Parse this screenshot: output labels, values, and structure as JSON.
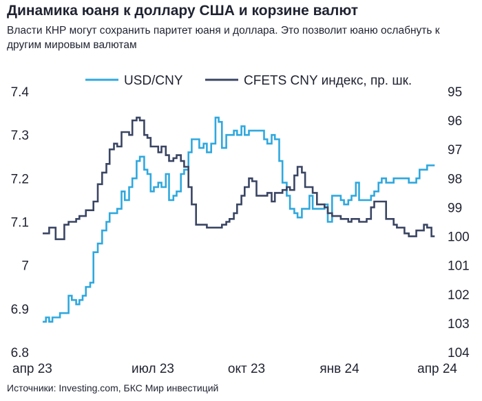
{
  "header": {
    "title": "Динамика юаня к доллару США и корзине валют",
    "subtitle": "Власти КНР могут сохранить паритет юаня и доллара. Это позволит юаню ослабнуть к другим мировым валютам"
  },
  "footer": {
    "source": "Источники: Investing.com, БКС Мир инвестиций"
  },
  "colors": {
    "usd_cny": "#2fa8de",
    "cfets": "#3a4563",
    "text": "#1f2230"
  },
  "chart_data": {
    "type": "line",
    "legend_position": "top-center",
    "grid": false,
    "xlabel": "",
    "x_ticks": [
      "апр 23",
      "июл 23",
      "окт 23",
      "янв 24",
      "апр 24"
    ],
    "x_range": [
      "2023-04-01",
      "2024-04-01"
    ],
    "y_left": {
      "label": "",
      "range": [
        6.8,
        7.4
      ],
      "ticks": [
        "6.8",
        "6.9",
        "7",
        "7.1",
        "7.2",
        "7.3",
        "7.4"
      ]
    },
    "y_right": {
      "label": "",
      "range": [
        95,
        104
      ],
      "inverted": true,
      "ticks": [
        "95",
        "96",
        "97",
        "98",
        "99",
        "100",
        "101",
        "102",
        "103",
        "104"
      ]
    },
    "series": [
      {
        "name": "USD/CNY",
        "axis": "left",
        "x": [
          "2023-04-01",
          "2023-04-04",
          "2023-04-07",
          "2023-04-10",
          "2023-04-13",
          "2023-04-17",
          "2023-04-21",
          "2023-04-25",
          "2023-04-28",
          "2023-05-02",
          "2023-05-05",
          "2023-05-08",
          "2023-05-11",
          "2023-05-15",
          "2023-05-18",
          "2023-05-22",
          "2023-05-26",
          "2023-05-30",
          "2023-06-02",
          "2023-06-06",
          "2023-06-09",
          "2023-06-13",
          "2023-06-16",
          "2023-06-20",
          "2023-06-23",
          "2023-06-27",
          "2023-06-30",
          "2023-07-04",
          "2023-07-07",
          "2023-07-10",
          "2023-07-13",
          "2023-07-17",
          "2023-07-20",
          "2023-07-24",
          "2023-07-27",
          "2023-07-31",
          "2023-08-03",
          "2023-08-07",
          "2023-08-10",
          "2023-08-14",
          "2023-08-17",
          "2023-08-21",
          "2023-08-24",
          "2023-08-28",
          "2023-08-31",
          "2023-09-04",
          "2023-09-08",
          "2023-09-11",
          "2023-09-14",
          "2023-09-18",
          "2023-09-21",
          "2023-09-25",
          "2023-09-28",
          "2023-10-02",
          "2023-10-05",
          "2023-10-09",
          "2023-10-12",
          "2023-10-16",
          "2023-10-19",
          "2023-10-23",
          "2023-10-26",
          "2023-10-30",
          "2023-11-02",
          "2023-11-06",
          "2023-11-09",
          "2023-11-13",
          "2023-11-16",
          "2023-11-20",
          "2023-11-23",
          "2023-11-27",
          "2023-11-30",
          "2023-12-04",
          "2023-12-07",
          "2023-12-11",
          "2023-12-14",
          "2023-12-18",
          "2023-12-21",
          "2023-12-25",
          "2023-12-28",
          "2024-01-02",
          "2024-01-05",
          "2024-01-09",
          "2024-01-12",
          "2024-01-16",
          "2024-01-19",
          "2024-01-23",
          "2024-01-26",
          "2024-01-30",
          "2024-02-02",
          "2024-02-06",
          "2024-02-09",
          "2024-02-13",
          "2024-02-16",
          "2024-02-20",
          "2024-02-23",
          "2024-02-27",
          "2024-03-01",
          "2024-03-05",
          "2024-03-08",
          "2024-03-12",
          "2024-03-15",
          "2024-03-19",
          "2024-03-22",
          "2024-03-26",
          "2024-03-29"
        ],
        "values": [
          6.87,
          6.88,
          6.87,
          6.88,
          6.88,
          6.89,
          6.89,
          6.93,
          6.92,
          6.91,
          6.92,
          6.93,
          6.95,
          6.96,
          7.03,
          7.05,
          7.08,
          7.1,
          7.12,
          7.12,
          7.13,
          7.17,
          7.15,
          7.18,
          7.2,
          7.24,
          7.25,
          7.22,
          7.21,
          7.17,
          7.18,
          7.19,
          7.18,
          7.21,
          7.15,
          7.16,
          7.17,
          7.21,
          7.22,
          7.26,
          7.29,
          7.29,
          7.27,
          7.28,
          7.26,
          7.28,
          7.34,
          7.33,
          7.27,
          7.3,
          7.3,
          7.31,
          7.3,
          7.32,
          7.3,
          7.31,
          7.31,
          7.31,
          7.31,
          7.29,
          7.28,
          7.3,
          7.29,
          7.24,
          7.19,
          7.16,
          7.13,
          7.12,
          7.11,
          7.13,
          7.13,
          7.16,
          7.13,
          7.13,
          7.13,
          7.14,
          7.1,
          7.16,
          7.16,
          7.15,
          7.14,
          7.15,
          7.16,
          7.19,
          7.15,
          7.15,
          7.15,
          7.16,
          7.17,
          7.19,
          7.2,
          7.19,
          7.19,
          7.2,
          7.2,
          7.2,
          7.2,
          7.19,
          7.19,
          7.2,
          7.22,
          7.22,
          7.23,
          7.23,
          7.23
        ]
      },
      {
        "name": "CFETS CNY индекс, пр. шк.",
        "axis": "right",
        "x": [
          "2023-04-01",
          "2023-04-04",
          "2023-04-07",
          "2023-04-10",
          "2023-04-13",
          "2023-04-17",
          "2023-04-21",
          "2023-04-25",
          "2023-04-28",
          "2023-05-02",
          "2023-05-05",
          "2023-05-08",
          "2023-05-11",
          "2023-05-15",
          "2023-05-18",
          "2023-05-22",
          "2023-05-26",
          "2023-05-30",
          "2023-06-02",
          "2023-06-06",
          "2023-06-09",
          "2023-06-13",
          "2023-06-16",
          "2023-06-20",
          "2023-06-23",
          "2023-06-27",
          "2023-06-30",
          "2023-07-04",
          "2023-07-07",
          "2023-07-10",
          "2023-07-13",
          "2023-07-17",
          "2023-07-20",
          "2023-07-24",
          "2023-07-27",
          "2023-07-31",
          "2023-08-03",
          "2023-08-07",
          "2023-08-10",
          "2023-08-14",
          "2023-08-17",
          "2023-08-21",
          "2023-08-24",
          "2023-08-28",
          "2023-08-31",
          "2023-09-04",
          "2023-09-08",
          "2023-09-11",
          "2023-09-14",
          "2023-09-18",
          "2023-09-21",
          "2023-09-25",
          "2023-09-28",
          "2023-10-02",
          "2023-10-05",
          "2023-10-09",
          "2023-10-12",
          "2023-10-16",
          "2023-10-19",
          "2023-10-23",
          "2023-10-26",
          "2023-10-30",
          "2023-11-02",
          "2023-11-06",
          "2023-11-09",
          "2023-11-13",
          "2023-11-16",
          "2023-11-20",
          "2023-11-23",
          "2023-11-27",
          "2023-11-30",
          "2023-12-04",
          "2023-12-07",
          "2023-12-11",
          "2023-12-14",
          "2023-12-18",
          "2023-12-21",
          "2023-12-25",
          "2023-12-28",
          "2024-01-02",
          "2024-01-05",
          "2024-01-09",
          "2024-01-12",
          "2024-01-16",
          "2024-01-19",
          "2024-01-23",
          "2024-01-26",
          "2024-01-30",
          "2024-02-02",
          "2024-02-06",
          "2024-02-09",
          "2024-02-13",
          "2024-02-16",
          "2024-02-20",
          "2024-02-23",
          "2024-02-27",
          "2024-03-01",
          "2024-03-05",
          "2024-03-08",
          "2024-03-12",
          "2024-03-15",
          "2024-03-19",
          "2024-03-22",
          "2024-03-26",
          "2024-03-29"
        ],
        "values": [
          99.9,
          99.9,
          99.7,
          99.7,
          100.1,
          100.1,
          99.6,
          99.5,
          99.5,
          99.4,
          99.3,
          99.3,
          99.1,
          99.1,
          98.8,
          98.2,
          97.8,
          97.5,
          97.0,
          96.8,
          96.9,
          96.4,
          96.4,
          96.5,
          96.0,
          95.9,
          96.0,
          96.5,
          96.6,
          96.9,
          96.9,
          97.1,
          96.9,
          97.2,
          97.4,
          97.3,
          97.2,
          97.4,
          97.6,
          98.3,
          98.9,
          99.6,
          99.6,
          99.6,
          99.7,
          99.7,
          99.7,
          99.7,
          99.6,
          99.5,
          99.4,
          99.2,
          98.9,
          98.6,
          98.3,
          98.0,
          98.1,
          98.6,
          98.6,
          98.6,
          98.5,
          98.8,
          98.5,
          98.5,
          98.4,
          98.3,
          98.4,
          97.9,
          97.6,
          97.8,
          98.3,
          98.3,
          98.5,
          98.9,
          98.9,
          99.0,
          99.2,
          99.3,
          99.3,
          99.4,
          99.4,
          99.5,
          99.4,
          99.4,
          99.5,
          99.5,
          99.4,
          99.0,
          98.8,
          98.8,
          98.8,
          99.4,
          99.4,
          99.6,
          99.7,
          99.7,
          99.9,
          100.0,
          100.0,
          99.8,
          99.8,
          99.6,
          99.7,
          100.0,
          100.0
        ]
      }
    ]
  }
}
